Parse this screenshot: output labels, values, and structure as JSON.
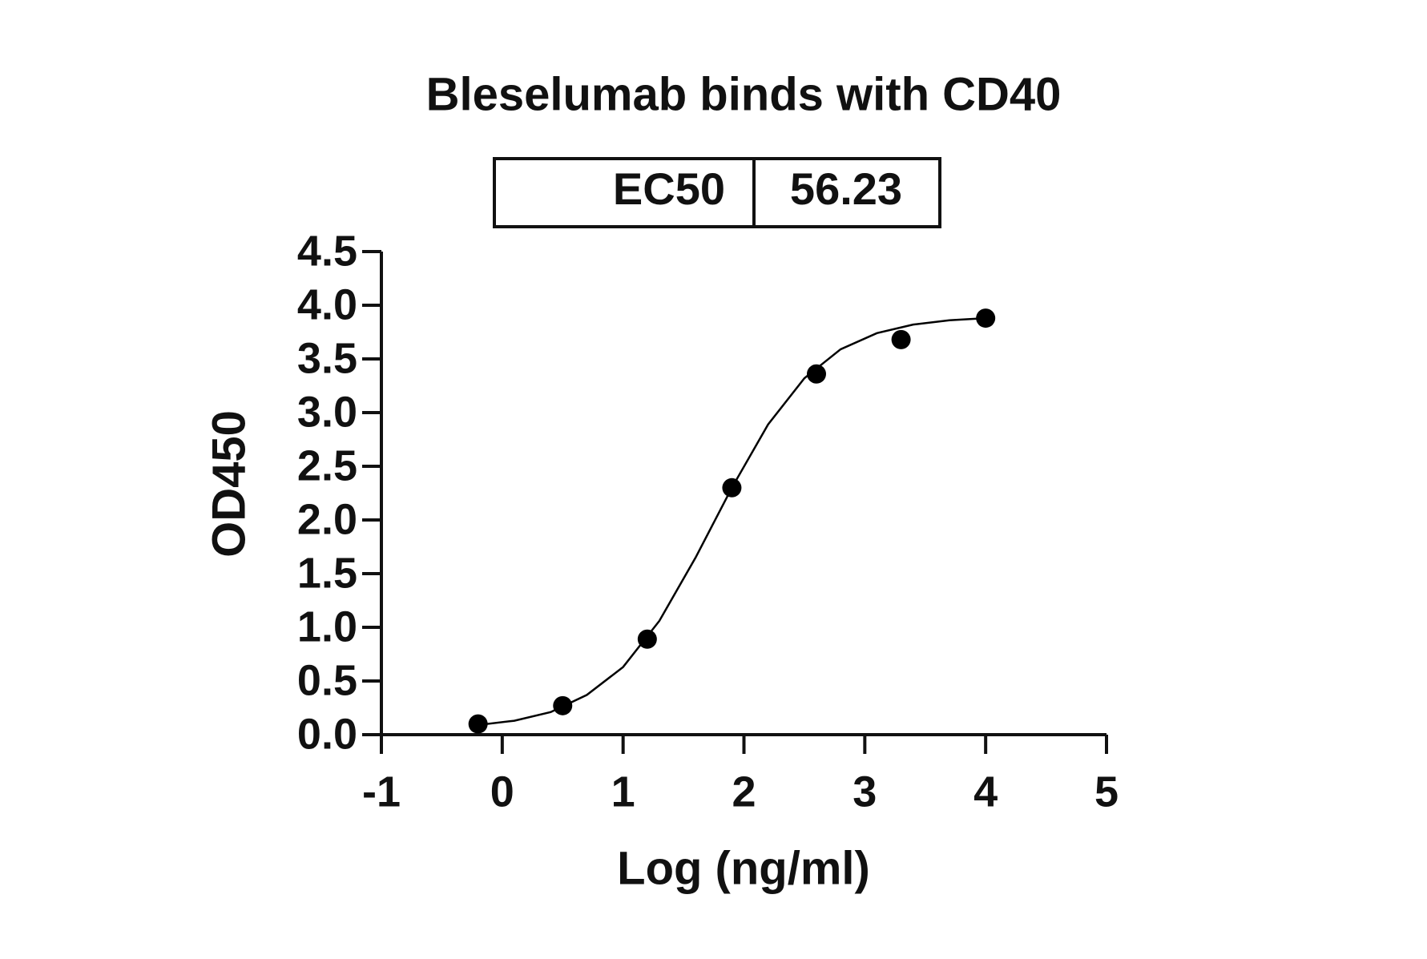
{
  "chart_data": {
    "type": "scatter",
    "title": "Bleselumab binds with CD40",
    "ec50_label": "EC50",
    "ec50_value": 56.23,
    "xlabel": "Log (ng/ml)",
    "ylabel": "OD450",
    "xlim": [
      -1,
      5
    ],
    "xticks": [
      -1,
      0,
      1,
      2,
      3,
      4,
      5
    ],
    "ylim": [
      0,
      4.5
    ],
    "yticks": [
      {
        "value": 0,
        "label": "0.0"
      },
      {
        "value": 0.5,
        "label": "0.5"
      },
      {
        "value": 1,
        "label": "1.0"
      },
      {
        "value": 1.5,
        "label": "1.5"
      },
      {
        "value": 2,
        "label": "2.0"
      },
      {
        "value": 2.5,
        "label": "2.5"
      },
      {
        "value": 3,
        "label": "3.0"
      },
      {
        "value": 3.5,
        "label": "3.5"
      },
      {
        "value": 4,
        "label": "4.0"
      },
      {
        "value": 4.5,
        "label": "4.5"
      }
    ],
    "color": "#000000",
    "x": [
      -0.2,
      0.5,
      1.2,
      1.9,
      2.6,
      3.3,
      4.0
    ],
    "values": [
      0.1,
      0.27,
      0.89,
      2.3,
      3.36,
      3.68,
      3.88
    ],
    "fit": {
      "x": [
        -0.2,
        0.1,
        0.4,
        0.7,
        1.0,
        1.3,
        1.6,
        1.9,
        2.2,
        2.5,
        2.8,
        3.1,
        3.4,
        3.7,
        4.0
      ],
      "values": [
        0.09,
        0.13,
        0.21,
        0.37,
        0.63,
        1.06,
        1.65,
        2.3,
        2.89,
        3.32,
        3.59,
        3.74,
        3.82,
        3.86,
        3.88
      ]
    }
  }
}
